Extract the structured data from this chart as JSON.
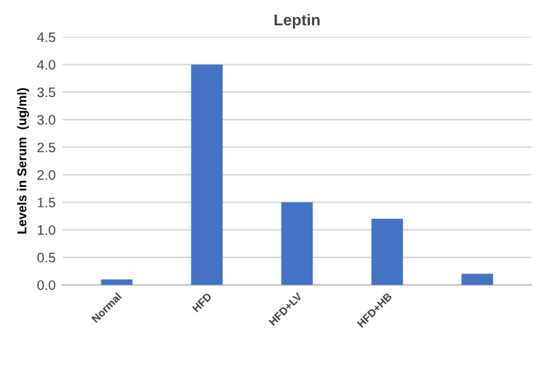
{
  "chart_data": {
    "type": "bar",
    "title": "Leptin",
    "ylabel": "Levels in Serum  (ug/ml)",
    "categories": [
      "Normal",
      "HFD",
      "HFD+LV",
      "HFD+HB",
      null
    ],
    "values": [
      0.1,
      4.0,
      1.5,
      1.2,
      0.2
    ],
    "color": "#4472c4",
    "ylim": [
      0,
      4.5
    ],
    "yticks": [
      {
        "value": 0,
        "label": "0.0"
      },
      {
        "value": 0.5,
        "label": "0.5"
      },
      {
        "value": 1,
        "label": "1.0"
      },
      {
        "value": 1.5,
        "label": "1.5"
      },
      {
        "value": 2,
        "label": "2.0"
      },
      {
        "value": 2.5,
        "label": "2.5"
      },
      {
        "value": 3,
        "label": "3.0"
      },
      {
        "value": 3.5,
        "label": "3.5"
      },
      {
        "value": 4,
        "label": "4.0"
      },
      {
        "value": 4.5,
        "label": "4.5"
      }
    ],
    "grid": "y"
  }
}
